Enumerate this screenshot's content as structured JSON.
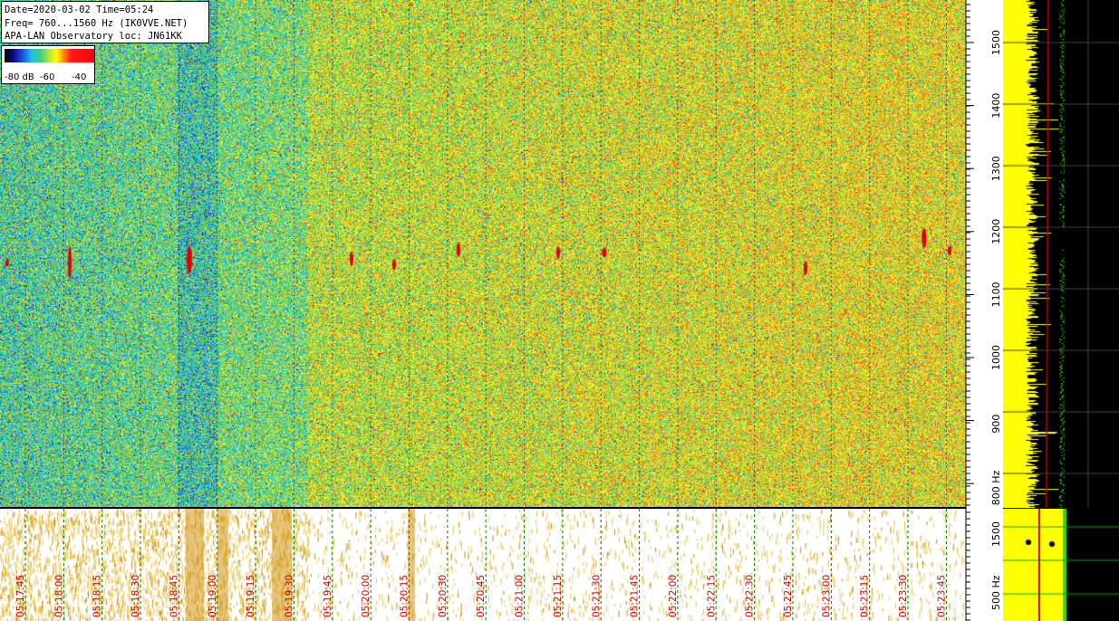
{
  "header": {
    "line1": "Date=2020-03-02 Time=05:24",
    "line2": "Freq= 760...1560 Hz (IK0VVE.NET)",
    "line3": "APA-LAN Observatory loc: JN61KK"
  },
  "colorbar": {
    "ticks": [
      "-80 dB",
      "-60",
      "-40"
    ],
    "colors": [
      "#000000",
      "#0a0a8a",
      "#1d4fe0",
      "#19c0e8",
      "#3ad17e",
      "#bfe33b",
      "#ffff00",
      "#ff8a00",
      "#ff1a1a",
      "#ff0000"
    ]
  },
  "freq_axis": {
    "ticks": [
      "1500",
      "1400",
      "1300",
      "1200",
      "1100",
      "1000",
      "900",
      "800 Hz"
    ]
  },
  "lower_freq_axis": {
    "ticks": [
      "1500",
      "500 Hz"
    ]
  },
  "time_axis": {
    "ticks": [
      "05:17:45",
      "05:18:00",
      "05:18:15",
      "05:18:30",
      "05:18:45",
      "05:19:00",
      "05:19:15",
      "05:19:30",
      "05:19:45",
      "05:20:00",
      "05:20:15",
      "05:20:30",
      "05:20:45",
      "05:21:00",
      "05:21:15",
      "05:21:30",
      "05:21:45",
      "05:22:00",
      "05:22:15",
      "05:22:30",
      "05:22:45",
      "05:23:00",
      "05:23:15",
      "05:23:30",
      "05:23:45"
    ]
  },
  "spectrum_axis": {
    "upper": [
      "-50.0 dB",
      "-40.0 dB"
    ],
    "lower": [
      "-50.0 dB",
      "-40.0 dB"
    ]
  },
  "palette": {
    "waterfall_bg": "#b8d84a",
    "spectrum_bg": "#000000",
    "spectrum_fill": "#ffff00",
    "spectrum_line": "#2bdc2b",
    "marker": "#cc0000",
    "grid_upper": "#444444",
    "grid_lower": "#00aa00"
  }
}
